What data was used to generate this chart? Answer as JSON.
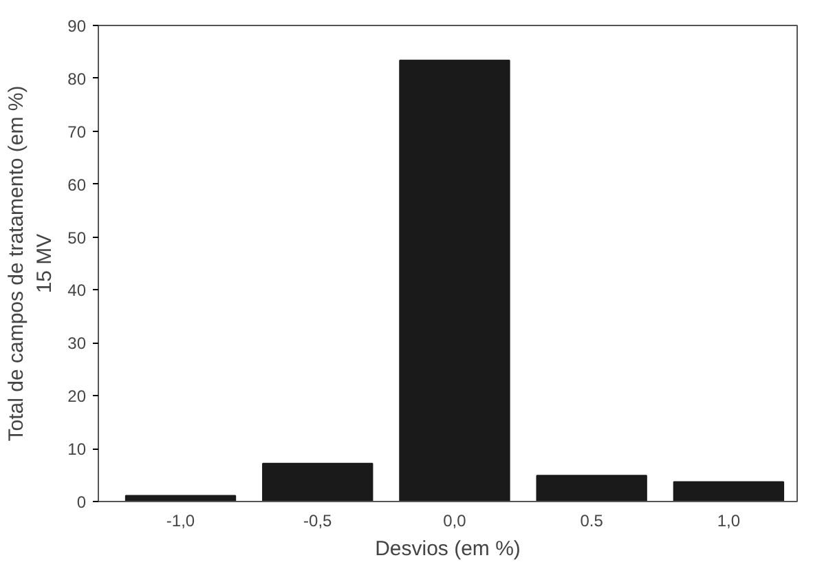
{
  "chart_data": {
    "type": "bar",
    "xlabel": "Desvios (em %)",
    "ylabel": "Total de campos de tratamento (em %)\n15 MV",
    "categories": [
      "-1,0",
      "-0,5",
      "0,0",
      "0.5",
      "1,0"
    ],
    "values": [
      1.1,
      7.2,
      83.4,
      4.9,
      3.7
    ],
    "color": "#1a1a1a",
    "ylim": [
      0,
      90
    ],
    "yticks": [
      0,
      10,
      20,
      30,
      40,
      50,
      60,
      70,
      80,
      90
    ],
    "grid": false
  }
}
